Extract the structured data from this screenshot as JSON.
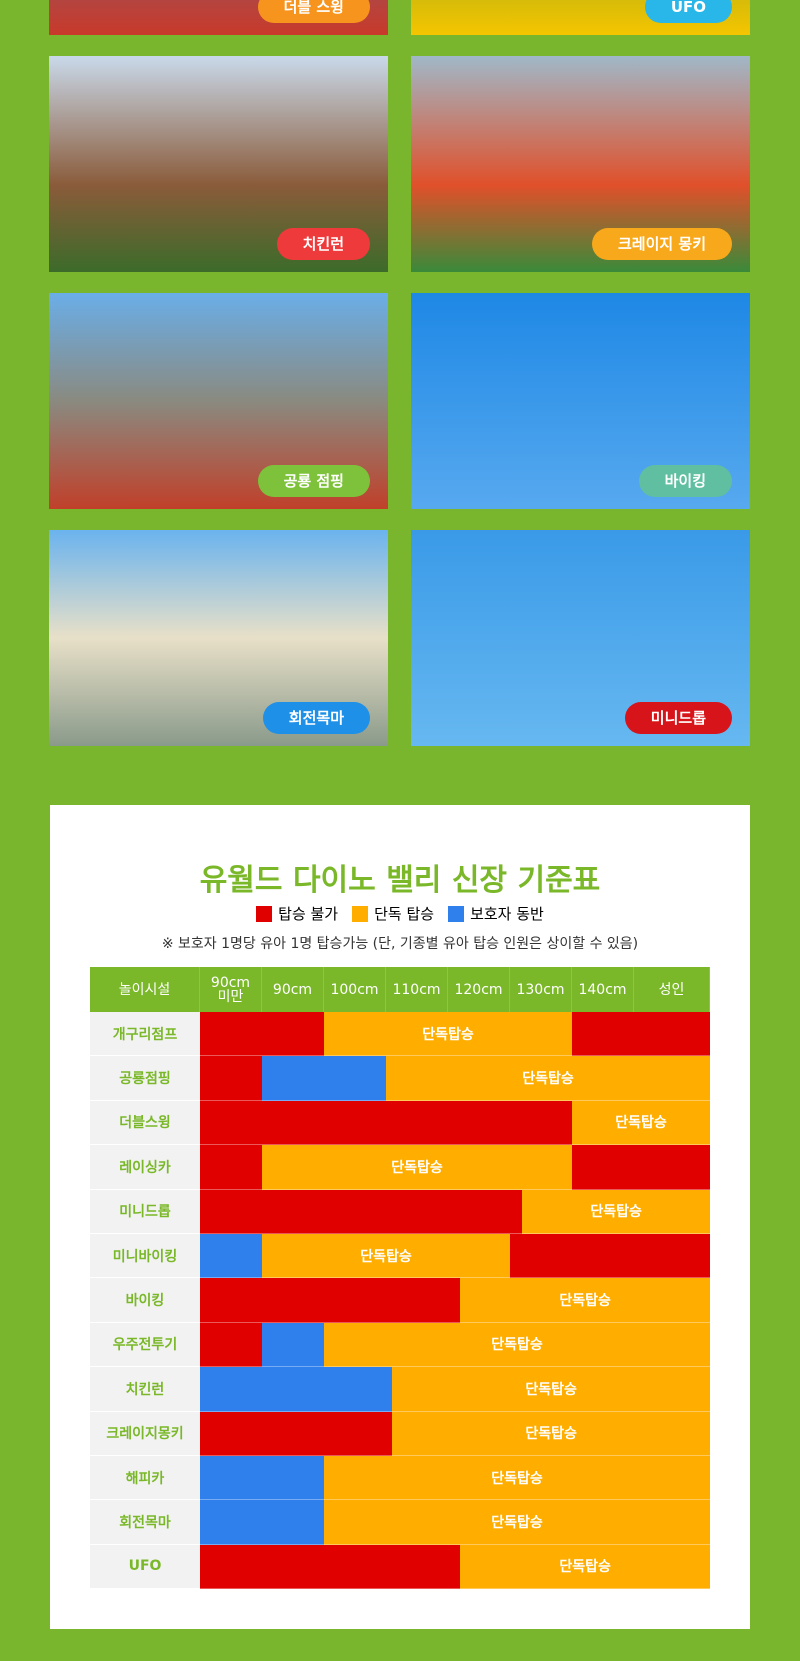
{
  "photos": [
    {
      "label": "더블 스윙",
      "pill": "#f7941d"
    },
    {
      "label": "UFO",
      "pill": "#29b6e8"
    },
    {
      "label": "치킨런",
      "pill": "#ee3a3a"
    },
    {
      "label": "크레이지 몽키",
      "pill": "#f7a81b"
    },
    {
      "label": "공룡 점핑",
      "pill": "#7dc23a"
    },
    {
      "label": "바이킹",
      "pill": "#5fbfa0"
    },
    {
      "label": "회전목마",
      "pill": "#1e90e8"
    },
    {
      "label": "미니드롭",
      "pill": "#d7141a"
    }
  ],
  "height_chart": {
    "title": "유월드 다이노 밸리 신장 기준표",
    "legend": [
      {
        "label": "탑승 불가",
        "color": "#e00000"
      },
      {
        "label": "단독 탑승",
        "color": "#ffae00"
      },
      {
        "label": "보호자 동반",
        "color": "#2f80ed"
      }
    ],
    "note": "※ 보호자 1명당 유아 1명 탑승가능 (단, 기종별 유아 탑승 인원은 상이할 수 있음)",
    "header": [
      "놀이시설",
      "90cm 미만",
      "90cm",
      "100cm",
      "110cm",
      "120cm",
      "130cm",
      "140cm",
      "성인"
    ],
    "rows": [
      {
        "name": "개구리점프",
        "segments": [
          {
            "color": "#e00000",
            "span": 2
          },
          {
            "color": "#ffae00",
            "span": 4,
            "label": "단독탑승"
          },
          {
            "color": "#e00000",
            "span": 2
          }
        ]
      },
      {
        "name": "공룡점핑",
        "segments": [
          {
            "color": "#e00000",
            "span": 1
          },
          {
            "color": "#2f80ed",
            "span": 2
          },
          {
            "color": "#ffae00",
            "span": 5,
            "label": "단독탑승"
          }
        ]
      },
      {
        "name": "더블스윙",
        "segments": [
          {
            "color": "#e00000",
            "span": 6
          },
          {
            "color": "#ffae00",
            "span": 2,
            "label": "단독탑승"
          }
        ]
      },
      {
        "name": "레이싱카",
        "segments": [
          {
            "color": "#e00000",
            "span": 1
          },
          {
            "color": "#ffae00",
            "span": 5,
            "label": "단독탑승"
          },
          {
            "color": "#e00000",
            "span": 2
          }
        ]
      },
      {
        "name": "미니드롭",
        "segments": [
          {
            "color": "#e00000",
            "span": 5.2
          },
          {
            "color": "#ffae00",
            "span": 2.8,
            "label": "단독탑승"
          }
        ]
      },
      {
        "name": "미니바이킹",
        "segments": [
          {
            "color": "#2f80ed",
            "span": 1
          },
          {
            "color": "#ffae00",
            "span": 4,
            "label": "단독탑승"
          },
          {
            "color": "#e00000",
            "span": 3
          }
        ]
      },
      {
        "name": "바이킹",
        "segments": [
          {
            "color": "#e00000",
            "span": 4.2
          },
          {
            "color": "#ffae00",
            "span": 3.8,
            "label": "단독탑승"
          }
        ]
      },
      {
        "name": "우주전투기",
        "segments": [
          {
            "color": "#e00000",
            "span": 1
          },
          {
            "color": "#2f80ed",
            "span": 1
          },
          {
            "color": "#ffae00",
            "span": 6,
            "label": "단독탑승"
          }
        ]
      },
      {
        "name": "치킨런",
        "segments": [
          {
            "color": "#2f80ed",
            "span": 3.1
          },
          {
            "color": "#ffae00",
            "span": 4.9,
            "label": "단독탑승"
          }
        ]
      },
      {
        "name": "크레이지몽키",
        "segments": [
          {
            "color": "#e00000",
            "span": 3.1
          },
          {
            "color": "#ffae00",
            "span": 4.9,
            "label": "단독탑승"
          }
        ]
      },
      {
        "name": "해피카",
        "segments": [
          {
            "color": "#2f80ed",
            "span": 2
          },
          {
            "color": "#ffae00",
            "span": 6,
            "label": "단독탑승"
          }
        ]
      },
      {
        "name": "회전목마",
        "segments": [
          {
            "color": "#2f80ed",
            "span": 2
          },
          {
            "color": "#ffae00",
            "span": 6,
            "label": "단독탑승"
          }
        ]
      },
      {
        "name": "UFO",
        "segments": [
          {
            "color": "#e00000",
            "span": 4.2
          },
          {
            "color": "#ffae00",
            "span": 3.8,
            "label": "단독탑승"
          }
        ]
      }
    ]
  }
}
